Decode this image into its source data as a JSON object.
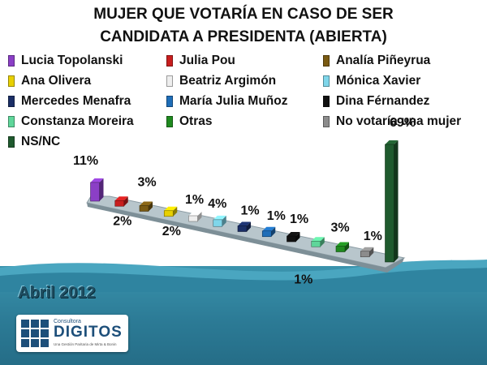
{
  "chart_data": {
    "type": "bar",
    "title": "MUJER QUE VOTARÍA EN CASO DE SER CANDIDATA A PRESIDENTA (ABIERTA)",
    "categories": [
      "Lucia Topolanski",
      "Julia Pou",
      "Analía Piñeyrua",
      "Ana Olivera",
      "Beatriz Argimón",
      "Mónica Xavier",
      "Mercedes Menafra",
      "María Julia Muñoz",
      "Dina Férnandez",
      "Constanza Moreira",
      "Otras",
      "No votaría una mujer",
      "NS/NC"
    ],
    "values": [
      11,
      2,
      3,
      2,
      1,
      4,
      1,
      1,
      1,
      1,
      3,
      1,
      69
    ],
    "labels": [
      "11%",
      "2%",
      "3%",
      "2%",
      "1%",
      "4%",
      "1%",
      "1%",
      "1%",
      "1%",
      "3%",
      "1%",
      "69%"
    ],
    "colors": [
      "#8b3fc6",
      "#c81e1e",
      "#7a5a12",
      "#e8d000",
      "#eeeeee",
      "#7fd6ea",
      "#1a2e66",
      "#1f6eb8",
      "#111111",
      "#5fd69a",
      "#1f8a1f",
      "#8c8c8c",
      "#1f5a2e"
    ],
    "legend_position": "top"
  },
  "footer": {
    "date": "Abril 2012",
    "logo_small": "Consultora",
    "logo_name": "DIGITOS",
    "logo_tagline": "Una Gestión Paritaria de Mirta & Bonin"
  }
}
